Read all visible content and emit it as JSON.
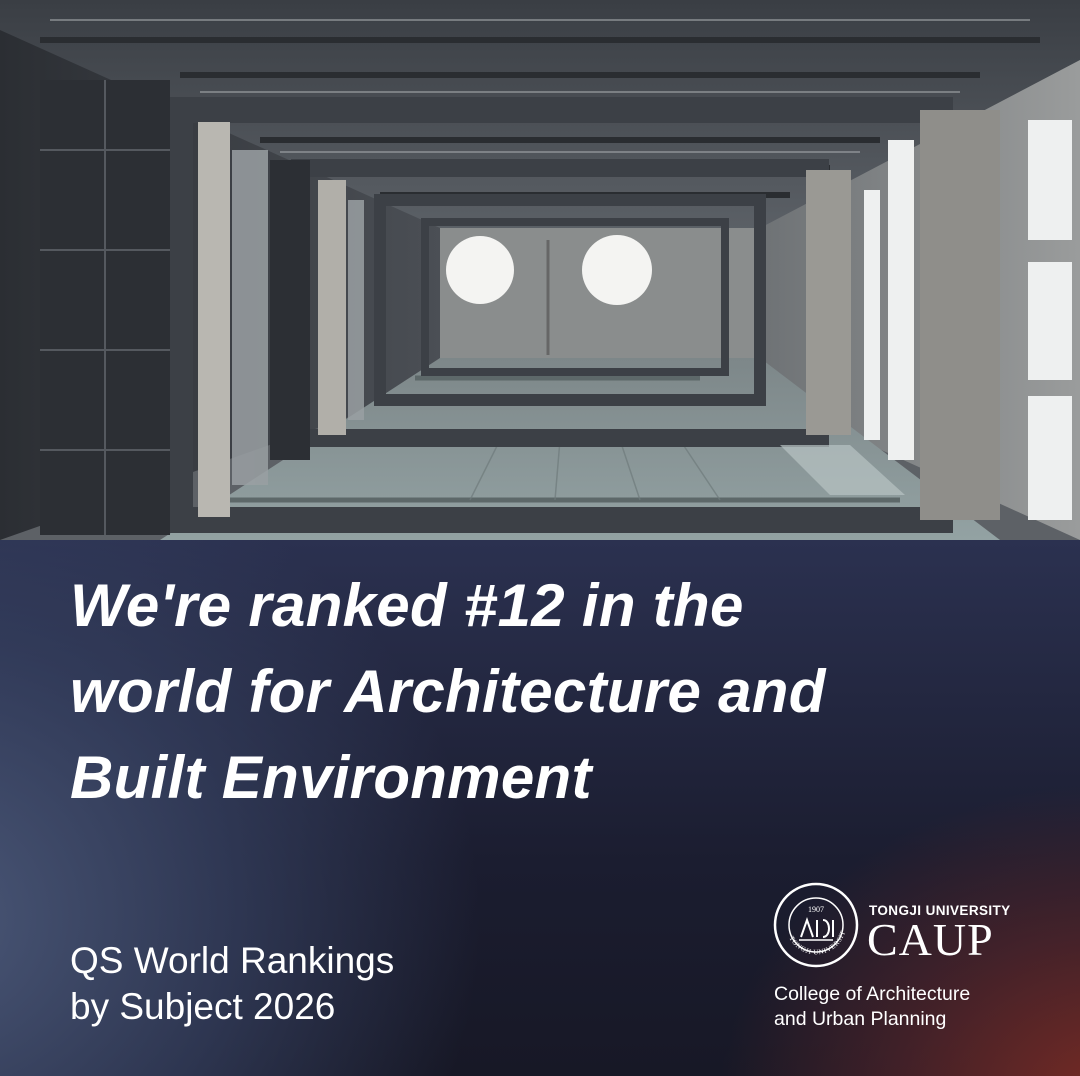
{
  "headline": {
    "line1": "We're ranked #12 in the",
    "line2": "world for Architecture and",
    "line3": "Built Environment"
  },
  "subtitle": {
    "line1": "QS World Rankings",
    "line2": "by Subject 2026"
  },
  "logo": {
    "university": "TONGJI UNIVERSITY",
    "acronym": "CAUP",
    "college_line1": "College of Architecture",
    "college_line2": "and Urban Planning",
    "seal_year": "1907",
    "seal_ring_text": "TONGJI UNIVERSITY"
  },
  "colors": {
    "panel_dark": "#1b1d30",
    "panel_blue": "#4e5c7d",
    "panel_red": "#7d2c24",
    "text": "#ffffff"
  }
}
